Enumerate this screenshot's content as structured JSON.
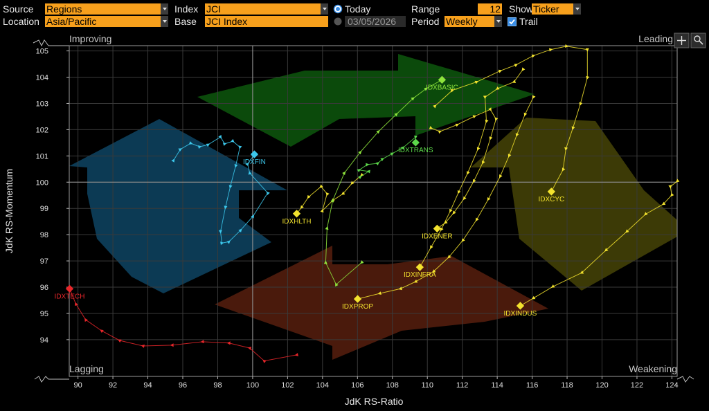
{
  "toolbar": {
    "source": {
      "label": "Source",
      "value": "Regions"
    },
    "index": {
      "label": "Index",
      "value": "JCI"
    },
    "today": "Today",
    "range": {
      "label": "Range",
      "value": 12
    },
    "show": {
      "label": "Show",
      "value": "Ticker"
    },
    "location": {
      "label": "Location",
      "value": "Asia/Pacific"
    },
    "base": {
      "label": "Base",
      "value": "JCI Index"
    },
    "date": "03/05/2026",
    "period": {
      "label": "Period",
      "value": "Weekly"
    },
    "trail": "Trail"
  },
  "chart_data": {
    "type": "line",
    "x_label": "JdK RS-Ratio",
    "y_label": "JdK RS-Momentum",
    "quadrants": {
      "improving": "Improving",
      "leading": "Leading",
      "lagging": "Lagging",
      "weakening": "Weakening"
    },
    "xlim": [
      89.5,
      124.3
    ],
    "ylim": [
      92.6,
      105.2
    ],
    "xticks": [
      90,
      92,
      94,
      96,
      98,
      100,
      102,
      104,
      106,
      108,
      110,
      112,
      114,
      116,
      118,
      120,
      122,
      124
    ],
    "yticks": [
      94,
      95,
      96,
      97,
      98,
      99,
      100,
      101,
      102,
      103,
      104,
      105
    ],
    "grid": true,
    "series": [
      {
        "name": "IDXTECH",
        "color": "#e8262a",
        "x": [
          102.52,
          100.66,
          99.83,
          98.64,
          97.13,
          95.39,
          93.72,
          92.38,
          91.35,
          90.44,
          89.88,
          89.52
        ],
        "y": [
          93.42,
          93.19,
          93.68,
          93.87,
          93.92,
          93.79,
          93.76,
          93.97,
          94.34,
          94.76,
          95.36,
          95.94
        ]
      },
      {
        "name": "IDXFIN",
        "color": "#3cc8ec",
        "x": [
          95.47,
          95.86,
          96.46,
          96.97,
          97.45,
          98.16,
          98.4,
          98.87,
          99.27,
          99.03,
          98.72,
          98.44,
          98.16,
          98.24,
          98.64,
          99.31,
          100.02,
          100.86,
          99.83,
          99.71,
          100.1
        ],
        "y": [
          100.83,
          101.25,
          101.48,
          101.35,
          101.43,
          101.72,
          101.46,
          101.56,
          101.33,
          100.62,
          99.83,
          99.04,
          98.12,
          97.68,
          97.73,
          98.17,
          98.7,
          99.59,
          100.35,
          100.69,
          101.06
        ]
      },
      {
        "name": "IDXHLTH",
        "color": "#f2e22e",
        "x": [
          106.24,
          105.69,
          105.17,
          104.58,
          103.99,
          104.26,
          103.91,
          103.19,
          102.8,
          102.52
        ],
        "y": [
          100.27,
          99.96,
          99.56,
          99.3,
          98.91,
          99.56,
          99.83,
          99.43,
          99.04,
          98.8
        ]
      },
      {
        "name": "IDXBASIC",
        "color": "#8ee43c",
        "x": [
          106.24,
          104.78,
          104.18,
          104.26,
          104.58,
          105.25,
          106.16,
          107.2,
          108.23,
          109.18,
          109.93,
          110.84
        ],
        "y": [
          96.94,
          96.1,
          96.94,
          98.25,
          99.3,
          100.35,
          101.14,
          101.93,
          102.59,
          103.19,
          103.56,
          103.9
        ]
      },
      {
        "name": "IDXTRANS",
        "color": "#5cd84a",
        "x": [
          106.16,
          106.64,
          106.09,
          106.56,
          107.16,
          107.43,
          107.99,
          108.62,
          109.33,
          109.33
        ],
        "y": [
          100.2,
          100.41,
          100.46,
          100.67,
          100.72,
          100.88,
          101.09,
          101.32,
          101.72,
          101.51
        ]
      },
      {
        "name": "IDXCYC",
        "color": "#f2e22e",
        "x": [
          110.44,
          111.43,
          112.82,
          114.17,
          115.08,
          116.07,
          117.06,
          117.97,
          119.16,
          119.16,
          118.76,
          118.33,
          117.93,
          117.77,
          117.1
        ],
        "y": [
          102.9,
          103.5,
          103.82,
          104.24,
          104.47,
          104.82,
          105.05,
          105.18,
          105.05,
          103.98,
          102.98,
          102.06,
          101.27,
          100.48,
          99.64
        ]
      },
      {
        "name": "IDXENER",
        "color": "#f2e22e",
        "x": [
          110.21,
          110.72,
          111.71,
          112.7,
          113.61,
          113.93,
          113.61,
          113.18,
          112.66,
          112.11,
          111.51,
          111.04,
          110.56
        ],
        "y": [
          102.06,
          101.93,
          102.19,
          102.51,
          102.77,
          102.4,
          101.67,
          100.75,
          100.04,
          99.38,
          98.83,
          98.46,
          98.23
        ]
      },
      {
        "name": "IDXINFRA",
        "color": "#f2e22e",
        "x": [
          115.47,
          114.96,
          114.01,
          113.3,
          113.38,
          112.9,
          112.31,
          111.79,
          111.32,
          110.8,
          110.21,
          109.57
        ],
        "y": [
          104.29,
          103.82,
          103.56,
          103.24,
          102.32,
          101.27,
          100.35,
          99.62,
          98.91,
          98.2,
          97.52,
          96.76
        ]
      },
      {
        "name": "IDXPROP",
        "color": "#f2e22e",
        "x": [
          116.07,
          115.59,
          115.12,
          114.68,
          114.17,
          113.49,
          112.82,
          112.03,
          111.24,
          110.36,
          109.33,
          108.46,
          107.27,
          106.01
        ],
        "y": [
          103.24,
          102.58,
          101.8,
          101.01,
          100.22,
          99.35,
          98.57,
          97.78,
          97.15,
          96.6,
          96.21,
          95.94,
          95.76,
          95.55
        ]
      },
      {
        "name": "IDXINDUS",
        "color": "#f2e22e",
        "x": [
          124.31,
          123.91,
          123.99,
          123.52,
          122.49,
          121.42,
          120.23,
          118.84,
          117.18,
          116.07,
          115.32
        ],
        "y": [
          100.04,
          99.83,
          99.51,
          99.17,
          98.78,
          98.12,
          97.41,
          96.55,
          96.02,
          95.58,
          95.29
        ]
      }
    ]
  }
}
